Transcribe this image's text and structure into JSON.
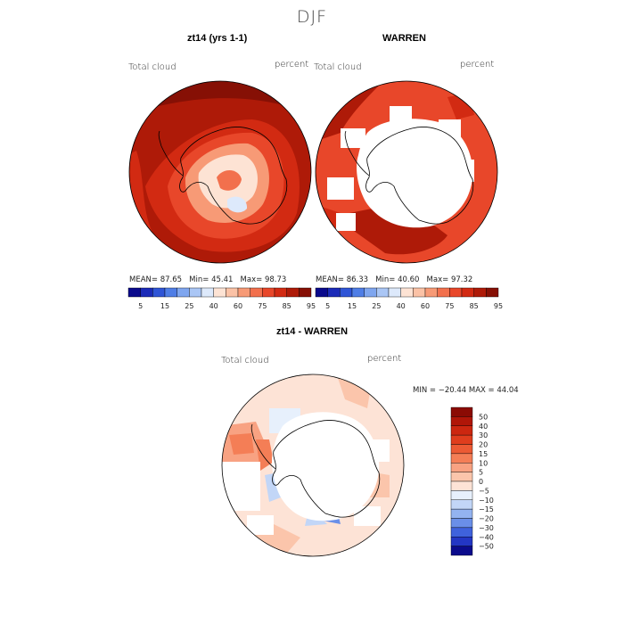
{
  "figure": {
    "season": "DJF"
  },
  "panels": [
    {
      "title": "zt14 (yrs 1-1)",
      "variable": "Total cloud",
      "units": "percent",
      "stats": {
        "mean_label": "MEAN=",
        "mean": "87.65",
        "min_label": "Min=",
        "min": "45.41",
        "max_label": "Max=",
        "max": "98.73"
      }
    },
    {
      "title": "WARREN",
      "variable": "Total cloud",
      "units": "percent",
      "stats": {
        "mean_label": "MEAN=",
        "mean": "86.33",
        "min_label": "Min=",
        "min": "40.60",
        "max_label": "Max=",
        "max": "97.32"
      }
    },
    {
      "title": "zt14 - WARREN",
      "variable": "Total cloud",
      "units": "percent",
      "minmax": "MIN = −20.44  MAX =  44.04"
    }
  ],
  "colorbar_abs": {
    "labels": [
      "5",
      "15",
      "25",
      "40",
      "60",
      "75",
      "85",
      "95"
    ],
    "colors": [
      "#0a0a8c",
      "#1b2bb8",
      "#2f55d6",
      "#4f7ee6",
      "#7fa6ef",
      "#aac6f5",
      "#dde9fb",
      "#fde3d4",
      "#fbc2a6",
      "#f79a76",
      "#f2704d",
      "#e8472a",
      "#d22a12",
      "#ae1a08",
      "#861005"
    ]
  },
  "colorbar_diff": {
    "labels": [
      "50",
      "40",
      "30",
      "20",
      "15",
      "10",
      "5",
      "0",
      "−5",
      "−10",
      "−15",
      "−20",
      "−30",
      "−40",
      "−50"
    ],
    "colors": [
      "#8b0b04",
      "#b01608",
      "#cc2710",
      "#df3d1d",
      "#ec5a34",
      "#f47e56",
      "#f8a282",
      "#fbc5ab",
      "#fde3d6",
      "#e7f0fc",
      "#c2d6f7",
      "#93b3f0",
      "#6a8fe8",
      "#3f62dc",
      "#2336c4",
      "#0b0b8c"
    ]
  }
}
